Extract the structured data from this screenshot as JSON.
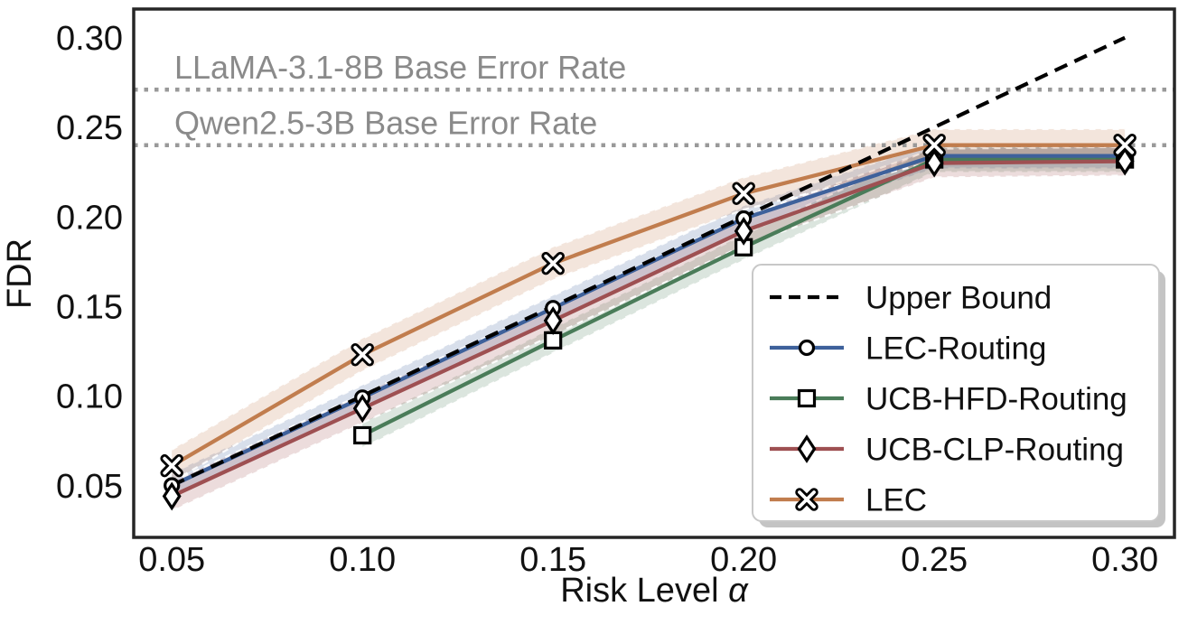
{
  "figure": {
    "background": "#ffffff",
    "spine_color": "#262626",
    "tick_text_color": "#111111",
    "annotation_text_color": "#8a8a8a",
    "reference_dot_color": "#999999",
    "legend_border_color": "#c8c8c8",
    "legend_shadow_color": "#c4c4c4"
  },
  "chart_data": {
    "type": "line",
    "title": "",
    "xlabel": "Risk Level α",
    "ylabel": "FDR",
    "xlim": [
      0.04,
      0.313
    ],
    "ylim": [
      0.021,
      0.316
    ],
    "grid": false,
    "legend_position": "lower right",
    "x": [
      0.05,
      0.1,
      0.15,
      0.2,
      0.25,
      0.3
    ],
    "xtick_labels": [
      "0.05",
      "0.10",
      "0.15",
      "0.20",
      "0.25",
      "0.30"
    ],
    "ytick_values": [
      0.05,
      0.1,
      0.15,
      0.2,
      0.25,
      0.3
    ],
    "ytick_labels": [
      "0.05",
      "0.10",
      "0.15",
      "0.20",
      "0.25",
      "0.30"
    ],
    "series": [
      {
        "name": "Upper Bound",
        "color": "#000000",
        "line": "dashed",
        "marker": "none",
        "band": 0,
        "values": [
          0.05,
          0.1,
          0.15,
          0.2,
          0.25,
          0.3
        ]
      },
      {
        "name": "LEC-Routing",
        "color": "#3e619b",
        "line": "solid",
        "marker": "circle",
        "band": 0.007,
        "values": [
          0.05,
          0.099,
          0.149,
          0.199,
          0.234,
          0.234
        ]
      },
      {
        "name": "UCB-HFD-Routing",
        "color": "#4a7c59",
        "line": "solid",
        "marker": "square",
        "band": 0.007,
        "values": [
          null,
          0.078,
          0.131,
          0.183,
          0.232,
          0.232
        ]
      },
      {
        "name": "UCB-CLP-Routing",
        "color": "#9e5052",
        "line": "solid",
        "marker": "diamond",
        "band": 0.008,
        "values": [
          0.044,
          0.093,
          0.142,
          0.192,
          0.23,
          0.231
        ]
      },
      {
        "name": "LEC",
        "color": "#c17d4e",
        "line": "solid",
        "marker": "xcross",
        "band": 0.009,
        "values": [
          0.061,
          0.123,
          0.174,
          0.213,
          0.24,
          0.24
        ]
      }
    ],
    "reference_lines": [
      {
        "label": "LLaMA-3.1-8B Base Error Rate",
        "value": 0.271
      },
      {
        "label": "Qwen2.5-3B Base Error Rate",
        "value": 0.24
      }
    ]
  }
}
